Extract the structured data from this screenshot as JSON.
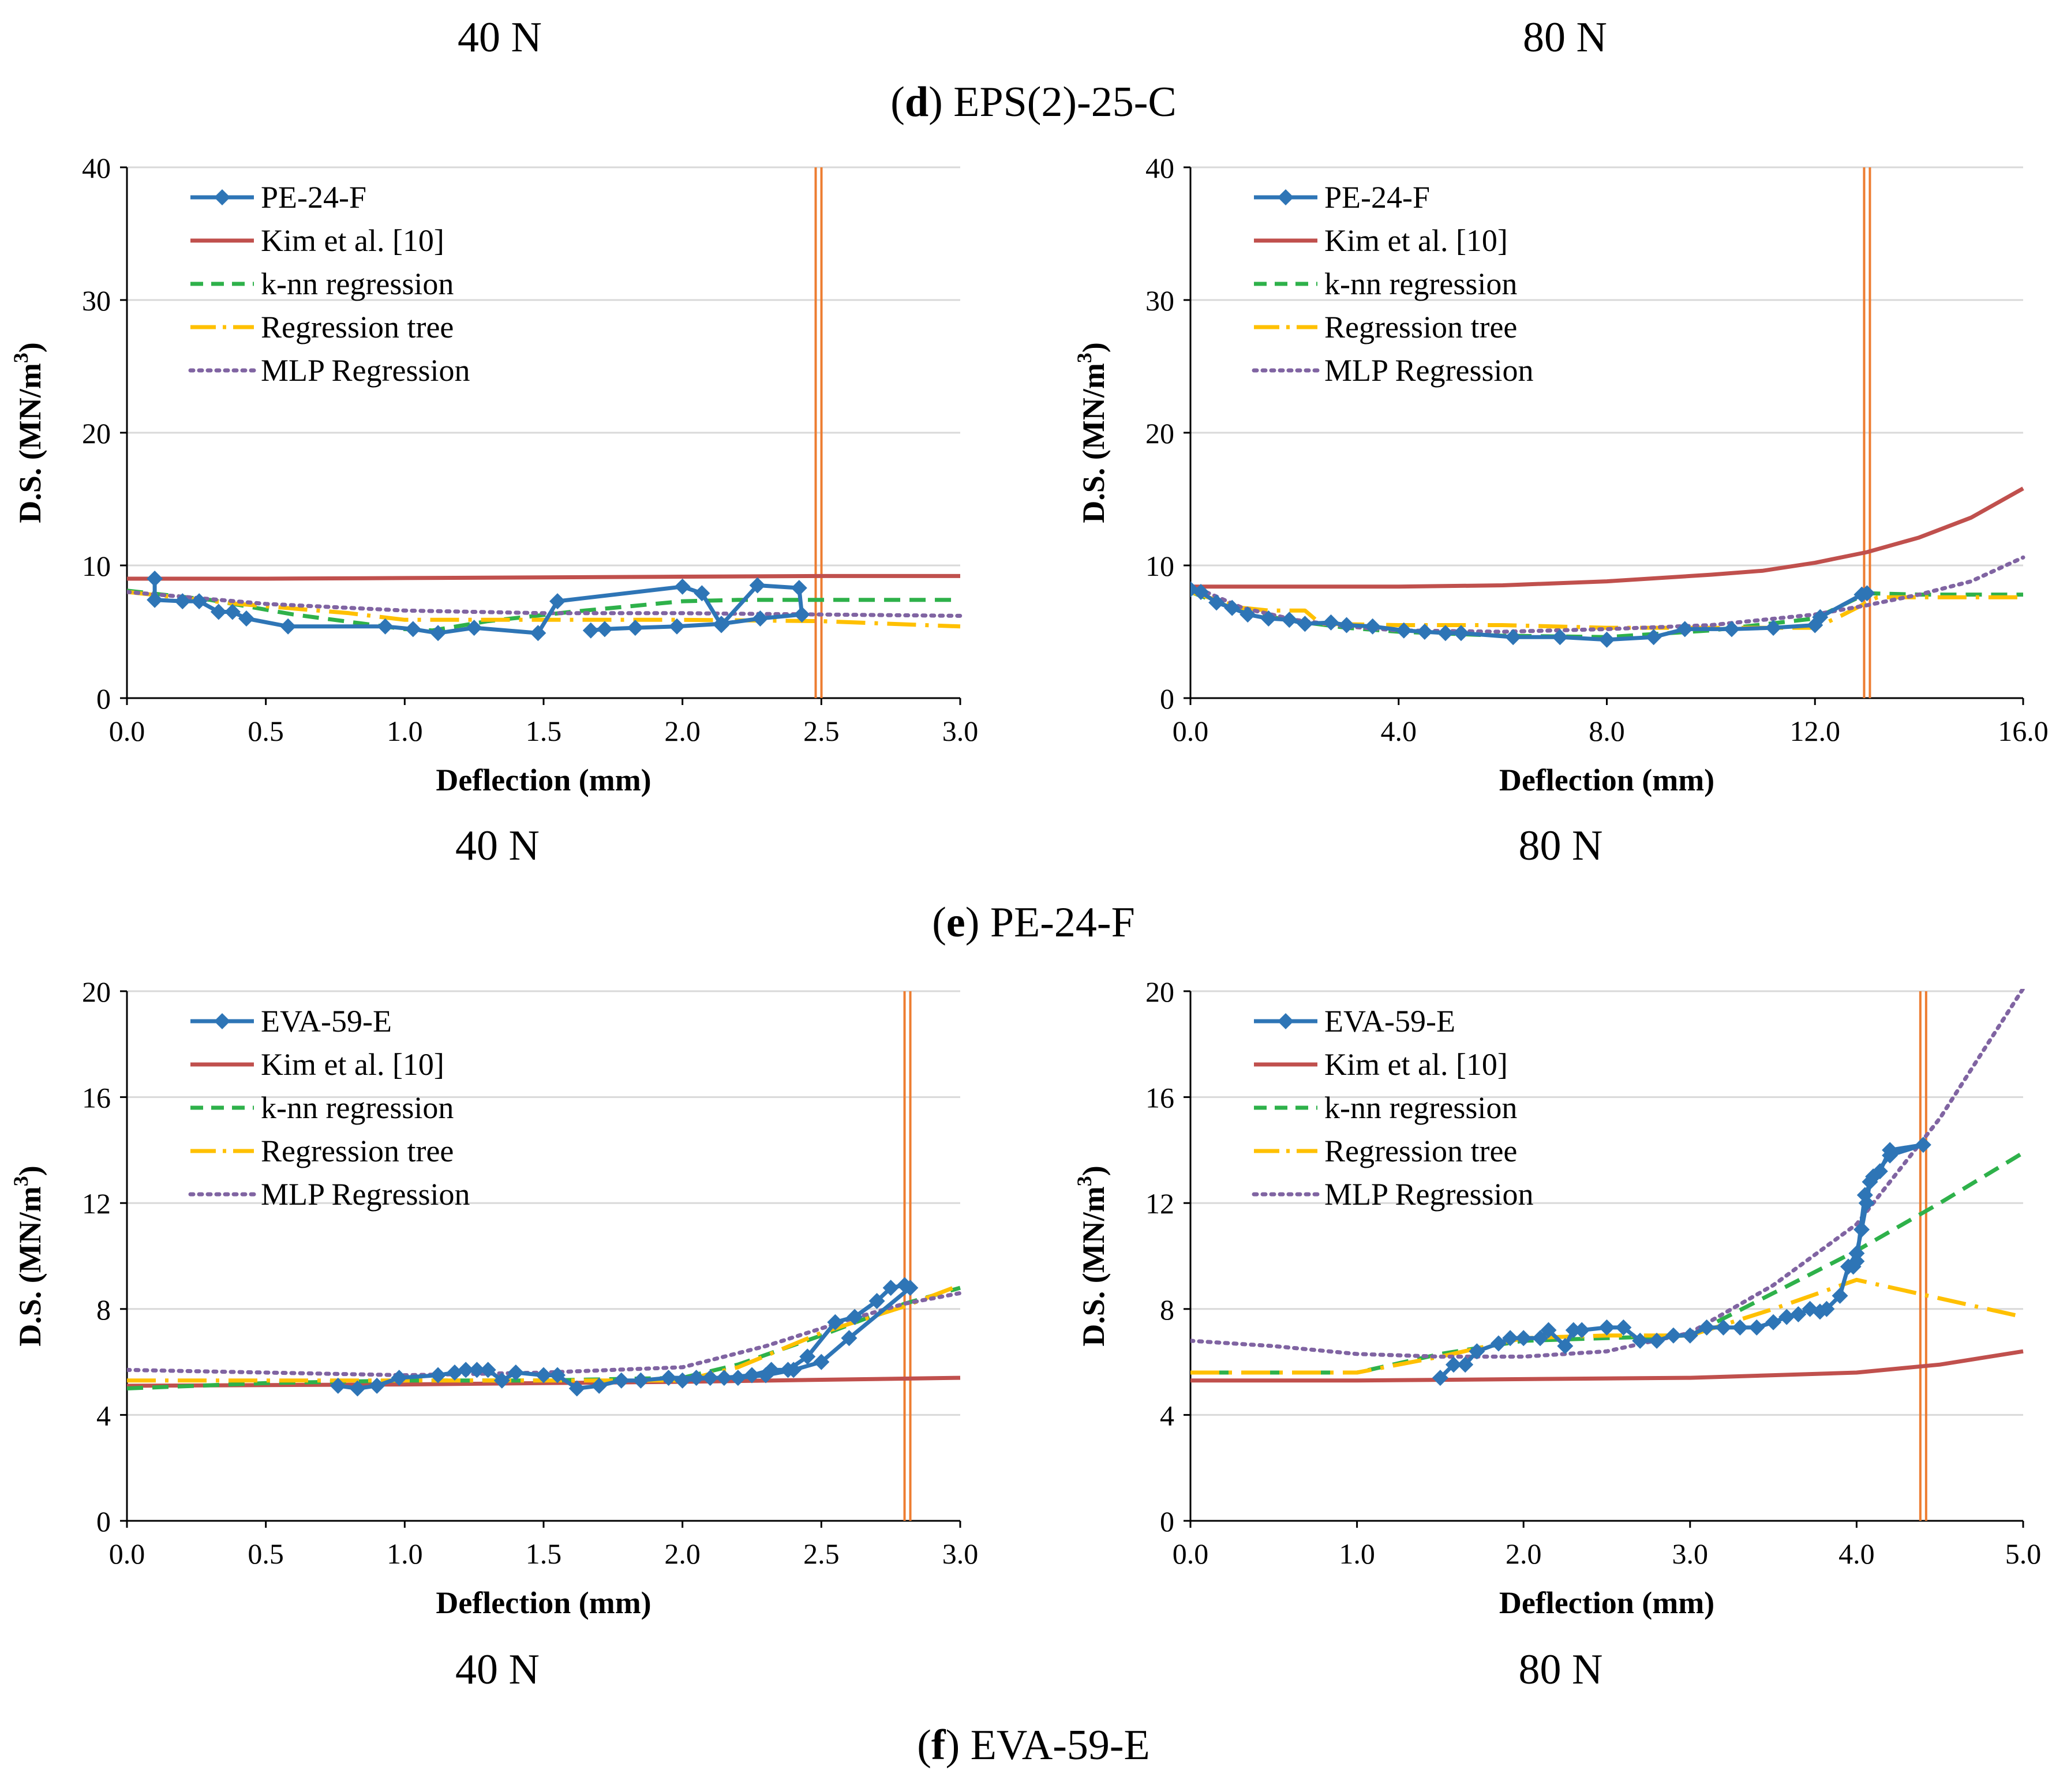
{
  "captions": {
    "top_left_load": "40 N",
    "top_right_load": "80 N",
    "d_letter": "d",
    "d_title": "EPS(2)-25-C",
    "e_letter": "e",
    "e_title": "PE-24-F",
    "f_letter": "f",
    "f_title": "EVA-59-E"
  },
  "chart_data": [
    {
      "id": "e-40",
      "type": "line",
      "panel_label": "40 N",
      "xlabel": "Deflection (mm)",
      "ylabel_main": "D.S. (MN/m",
      "ylabel_sup": "3",
      "ylabel_close": ")",
      "xlim": [
        0,
        3.0
      ],
      "ylim": [
        0,
        40
      ],
      "xticks": [
        "0.0",
        "0.5",
        "1.0",
        "1.5",
        "2.0",
        "2.5",
        "3.0"
      ],
      "yticks": [
        "0",
        "10",
        "20",
        "30",
        "40"
      ],
      "vline": 2.49,
      "series": [
        {
          "name": "PE-24-F",
          "color": "#2E75B6",
          "style": "solid",
          "marker": "diamond",
          "x": [
            0.1,
            0.1,
            0.2,
            0.26,
            0.33,
            0.38,
            0.43,
            0.58,
            0.93,
            1.03,
            1.12,
            1.25,
            1.48,
            1.55,
            2.0,
            2.07,
            2.14,
            2.27,
            2.42,
            2.43,
            2.28,
            2.14,
            1.98,
            1.83,
            1.72,
            1.67
          ],
          "y": [
            9.0,
            7.4,
            7.3,
            7.3,
            6.5,
            6.5,
            6.0,
            5.4,
            5.4,
            5.2,
            4.9,
            5.3,
            4.9,
            7.3,
            8.4,
            7.9,
            5.5,
            8.5,
            8.3,
            6.3,
            6.0,
            5.6,
            5.4,
            5.3,
            5.2,
            5.1
          ]
        },
        {
          "name": "Kim et al. [10]",
          "color": "#C0504D",
          "style": "solid",
          "marker": "none",
          "x": [
            0.0,
            0.5,
            1.0,
            1.5,
            2.0,
            2.5,
            3.0
          ],
          "y": [
            9.0,
            9.0,
            9.05,
            9.1,
            9.15,
            9.2,
            9.2
          ]
        },
        {
          "name": "k-nn regression",
          "color": "#2EB14A",
          "style": "dash",
          "marker": "none",
          "x": [
            0.0,
            0.3,
            0.6,
            1.0,
            1.1,
            1.3,
            1.6,
            2.0,
            2.2,
            2.5,
            3.0
          ],
          "y": [
            8.1,
            7.4,
            6.3,
            5.2,
            5.1,
            5.8,
            6.5,
            7.3,
            7.4,
            7.4,
            7.4
          ]
        },
        {
          "name": "Regression tree",
          "color": "#FFC000",
          "style": "dashdot",
          "marker": "none",
          "x": [
            0.0,
            0.4,
            0.8,
            1.0,
            1.5,
            2.0,
            2.5,
            3.0
          ],
          "y": [
            8.0,
            7.1,
            6.4,
            5.9,
            5.9,
            5.9,
            5.8,
            5.4
          ]
        },
        {
          "name": "MLP Regression",
          "color": "#8064A2",
          "style": "dot",
          "marker": "none",
          "x": [
            0.0,
            0.5,
            1.0,
            1.5,
            2.0,
            2.5,
            3.0
          ],
          "y": [
            8.0,
            7.1,
            6.6,
            6.4,
            6.4,
            6.3,
            6.2
          ]
        }
      ]
    },
    {
      "id": "e-80",
      "type": "line",
      "panel_label": "80 N",
      "xlabel": "Deflection (mm)",
      "ylabel_main": "D.S. (MN/m",
      "ylabel_sup": "3",
      "ylabel_close": ")",
      "xlim": [
        0,
        16.0
      ],
      "ylim": [
        0,
        40
      ],
      "xticks": [
        "0.0",
        "4.0",
        "8.0",
        "12.0",
        "16.0"
      ],
      "yticks": [
        "0",
        "10",
        "20",
        "30",
        "40"
      ],
      "vline": 13.0,
      "series": [
        {
          "name": "PE-24-F",
          "color": "#2E75B6",
          "style": "solid",
          "marker": "diamond",
          "x": [
            0.0,
            0.2,
            0.5,
            0.8,
            1.1,
            1.5,
            1.9,
            2.2,
            2.7,
            3.0,
            3.5,
            4.1,
            4.5,
            4.9,
            5.2,
            6.2,
            7.1,
            8.0,
            8.9,
            9.5,
            10.4,
            11.2,
            12.0,
            12.1,
            12.9,
            13.0
          ],
          "y": [
            8.2,
            8.0,
            7.2,
            6.8,
            6.3,
            6.0,
            5.9,
            5.6,
            5.7,
            5.5,
            5.4,
            5.1,
            5.0,
            4.9,
            4.9,
            4.6,
            4.6,
            4.4,
            4.6,
            5.2,
            5.2,
            5.3,
            5.5,
            6.1,
            7.8,
            7.9
          ]
        },
        {
          "name": "Kim et al. [10]",
          "color": "#C0504D",
          "style": "solid",
          "marker": "none",
          "x": [
            0.0,
            2.0,
            4.0,
            6.0,
            8.0,
            10.0,
            11.0,
            12.0,
            13.0,
            14.0,
            15.0,
            16.0
          ],
          "y": [
            8.4,
            8.4,
            8.4,
            8.5,
            8.8,
            9.3,
            9.6,
            10.2,
            11.0,
            12.1,
            13.6,
            15.8
          ]
        },
        {
          "name": "k-nn regression",
          "color": "#2EB14A",
          "style": "dash",
          "marker": "none",
          "x": [
            0.0,
            1.0,
            2.0,
            3.0,
            4.0,
            6.0,
            8.0,
            10.0,
            12.0,
            13.0,
            14.0,
            16.0
          ],
          "y": [
            8.0,
            6.5,
            5.8,
            5.3,
            5.0,
            4.7,
            4.6,
            5.1,
            6.0,
            7.9,
            7.8,
            7.8
          ]
        },
        {
          "name": "Regression tree",
          "color": "#FFC000",
          "style": "dashdot",
          "marker": "none",
          "x": [
            0.0,
            1.0,
            1.5,
            2.2,
            2.5,
            4.0,
            6.0,
            8.0,
            10.0,
            12.0,
            12.5,
            13.2,
            14.0,
            16.0
          ],
          "y": [
            8.0,
            6.8,
            6.6,
            6.6,
            5.6,
            5.5,
            5.5,
            5.3,
            5.3,
            5.3,
            6.2,
            7.6,
            7.6,
            7.6
          ]
        },
        {
          "name": "MLP Regression",
          "color": "#8064A2",
          "style": "dot",
          "marker": "none",
          "x": [
            0.0,
            1.0,
            2.0,
            3.0,
            4.0,
            6.0,
            8.0,
            10.0,
            12.0,
            13.0,
            14.0,
            15.0,
            16.0
          ],
          "y": [
            8.5,
            6.8,
            5.9,
            5.4,
            5.1,
            5.0,
            5.2,
            5.5,
            6.3,
            7.0,
            7.8,
            8.8,
            10.6
          ]
        }
      ]
    },
    {
      "id": "f-40",
      "type": "line",
      "panel_label": "40 N",
      "xlabel": "Deflection (mm)",
      "ylabel_main": "D.S. (MN/m",
      "ylabel_sup": "3",
      "ylabel_close": ")",
      "xlim": [
        0,
        3.0
      ],
      "ylim": [
        0,
        20
      ],
      "xticks": [
        "0.0",
        "0.5",
        "1.0",
        "1.5",
        "2.0",
        "2.5",
        "3.0"
      ],
      "yticks": [
        "0",
        "4",
        "8",
        "12",
        "16",
        "20"
      ],
      "vline": 2.81,
      "series": [
        {
          "name": "EVA-59-E",
          "color": "#2E75B6",
          "style": "solid",
          "marker": "diamond",
          "x": [
            0.76,
            0.83,
            0.9,
            0.98,
            1.12,
            1.18,
            1.22,
            1.26,
            1.3,
            1.35,
            1.4,
            1.5,
            1.55,
            1.62,
            1.7,
            1.78,
            1.85,
            1.95,
            2.05,
            2.15,
            2.25,
            2.32,
            2.38,
            2.45,
            2.55,
            2.62,
            2.7,
            2.75,
            2.8,
            2.82,
            2.6,
            2.5,
            2.4,
            2.3,
            2.2,
            2.1,
            2.0
          ],
          "y": [
            5.1,
            5.0,
            5.1,
            5.4,
            5.5,
            5.6,
            5.7,
            5.7,
            5.7,
            5.3,
            5.6,
            5.5,
            5.5,
            5.0,
            5.1,
            5.3,
            5.3,
            5.4,
            5.4,
            5.4,
            5.5,
            5.7,
            5.7,
            6.2,
            7.5,
            7.7,
            8.3,
            8.8,
            8.9,
            8.8,
            6.9,
            6.0,
            5.7,
            5.5,
            5.4,
            5.4,
            5.3
          ]
        },
        {
          "name": "Kim et al. [10]",
          "color": "#C0504D",
          "style": "solid",
          "marker": "none",
          "x": [
            0.0,
            1.0,
            2.0,
            3.0
          ],
          "y": [
            5.1,
            5.15,
            5.25,
            5.4
          ]
        },
        {
          "name": "k-nn regression",
          "color": "#2EB14A",
          "style": "dash",
          "marker": "none",
          "x": [
            0.0,
            0.5,
            1.0,
            1.5,
            2.0,
            2.2,
            2.5,
            2.8,
            3.0
          ],
          "y": [
            5.0,
            5.2,
            5.3,
            5.3,
            5.4,
            5.9,
            7.0,
            8.2,
            8.8
          ]
        },
        {
          "name": "Regression tree",
          "color": "#FFC000",
          "style": "dashdot",
          "marker": "none",
          "x": [
            0.0,
            0.5,
            1.0,
            1.5,
            2.0,
            2.2,
            2.5,
            2.8,
            3.0
          ],
          "y": [
            5.3,
            5.3,
            5.3,
            5.3,
            5.3,
            5.8,
            7.1,
            8.1,
            8.9
          ]
        },
        {
          "name": "MLP Regression",
          "color": "#8064A2",
          "style": "dot",
          "marker": "none",
          "x": [
            0.0,
            0.5,
            1.0,
            1.5,
            2.0,
            2.3,
            2.6,
            2.8,
            3.0
          ],
          "y": [
            5.7,
            5.6,
            5.5,
            5.6,
            5.8,
            6.6,
            7.6,
            8.2,
            8.6
          ]
        }
      ]
    },
    {
      "id": "f-80",
      "type": "line",
      "panel_label": "80 N",
      "xlabel": "Deflection (mm)",
      "ylabel_main": "D.S. (MN/m",
      "ylabel_sup": "3",
      "ylabel_close": ")",
      "xlim": [
        0,
        5.0
      ],
      "ylim": [
        0,
        20
      ],
      "xticks": [
        "0.0",
        "1.0",
        "2.0",
        "3.0",
        "4.0",
        "5.0"
      ],
      "yticks": [
        "0",
        "4",
        "8",
        "12",
        "16",
        "20"
      ],
      "vline": 4.4,
      "series": [
        {
          "name": "EVA-59-E",
          "color": "#2E75B6",
          "style": "solid",
          "marker": "diamond",
          "x": [
            1.5,
            1.58,
            1.65,
            1.72,
            1.85,
            1.92,
            2.0,
            2.1,
            2.15,
            2.25,
            2.3,
            2.35,
            2.5,
            2.6,
            2.7,
            2.8,
            2.9,
            3.0,
            3.1,
            3.2,
            3.3,
            3.4,
            3.5,
            3.58,
            3.65,
            3.72,
            3.78,
            3.82,
            3.9,
            3.95,
            4.0,
            4.03,
            4.06,
            4.08,
            4.1,
            4.14,
            4.2,
            4.4,
            4.2,
            4.1,
            4.05,
            4.0,
            3.98
          ],
          "y": [
            5.4,
            5.9,
            5.9,
            6.4,
            6.7,
            6.9,
            6.9,
            6.9,
            7.2,
            6.6,
            7.2,
            7.2,
            7.3,
            7.3,
            6.8,
            6.8,
            7.0,
            7.0,
            7.3,
            7.3,
            7.3,
            7.3,
            7.5,
            7.7,
            7.8,
            8.0,
            7.9,
            8.0,
            8.5,
            9.6,
            10.1,
            11.0,
            12.0,
            12.8,
            13.0,
            13.2,
            14.0,
            14.2,
            13.8,
            13.0,
            12.3,
            9.8,
            9.6
          ]
        },
        {
          "name": "Kim et al. [10]",
          "color": "#C0504D",
          "style": "solid",
          "marker": "none",
          "x": [
            0.0,
            1.0,
            2.0,
            3.0,
            3.5,
            4.0,
            4.5,
            5.0
          ],
          "y": [
            5.3,
            5.3,
            5.35,
            5.4,
            5.5,
            5.6,
            5.9,
            6.4
          ]
        },
        {
          "name": "k-nn regression",
          "color": "#2EB14A",
          "style": "dash",
          "marker": "none",
          "x": [
            0.0,
            1.0,
            1.5,
            2.0,
            2.5,
            3.0,
            3.5,
            4.0,
            4.5,
            5.0
          ],
          "y": [
            5.6,
            5.6,
            6.3,
            6.8,
            6.9,
            7.0,
            8.6,
            10.2,
            12.0,
            13.9
          ]
        },
        {
          "name": "Regression tree",
          "color": "#FFC000",
          "style": "dashdot",
          "marker": "none",
          "x": [
            0.0,
            0.5,
            1.0,
            1.5,
            2.0,
            2.5,
            3.0,
            3.5,
            4.0,
            4.5,
            5.0
          ],
          "y": [
            5.6,
            5.6,
            5.6,
            6.2,
            6.9,
            7.0,
            7.0,
            8.0,
            9.1,
            8.4,
            7.7
          ]
        },
        {
          "name": "MLP Regression",
          "color": "#8064A2",
          "style": "dot",
          "marker": "none",
          "x": [
            0.0,
            0.5,
            1.0,
            1.5,
            2.0,
            2.5,
            3.0,
            3.5,
            4.0,
            4.5,
            5.0
          ],
          "y": [
            6.8,
            6.6,
            6.3,
            6.2,
            6.2,
            6.4,
            7.1,
            8.9,
            11.2,
            15.2,
            20.1
          ]
        }
      ]
    }
  ]
}
